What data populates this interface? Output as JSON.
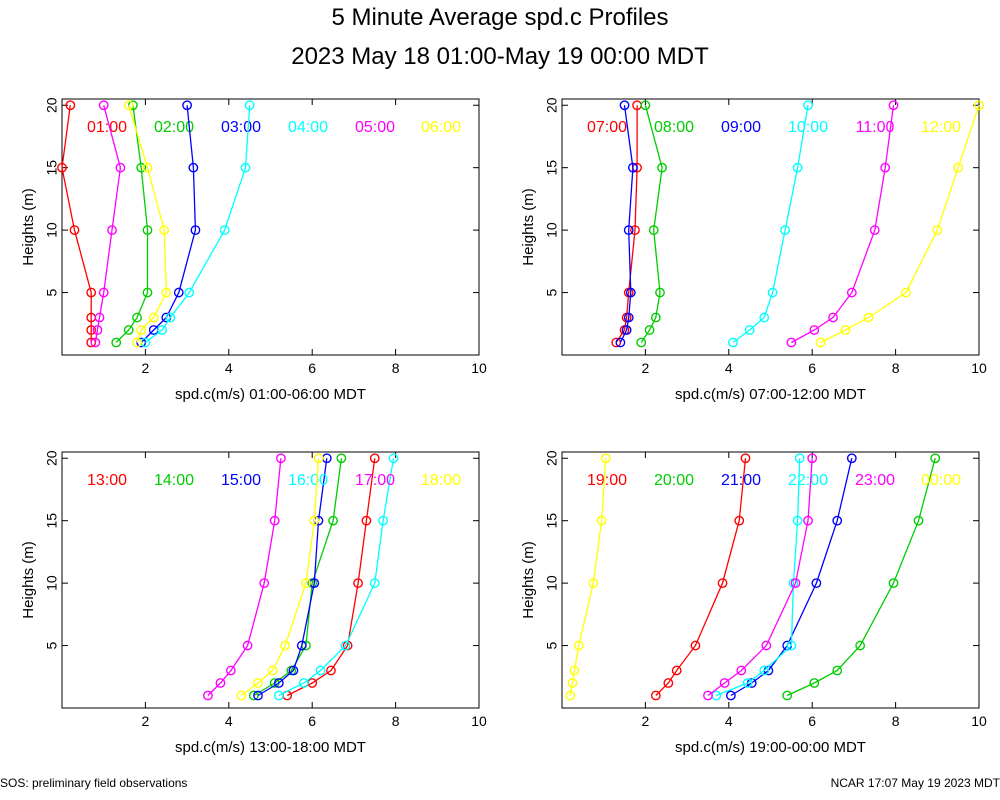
{
  "header": {
    "title": "5 Minute Average spd.c Profiles",
    "subtitle": "2023 May 18 01:00-May 19 00:00 MDT"
  },
  "footer": {
    "left": "SOS: preliminary field observations",
    "right": "NCAR 17:07 May 19 2023 MDT"
  },
  "chart_data": [
    {
      "type": "line",
      "xlabel": "spd.c(m/s) 01:00-06:00 MDT",
      "ylabel": "Heights (m)",
      "xlim": [
        0,
        10
      ],
      "ylim": [
        0,
        20.5
      ],
      "xticks": [
        2,
        4,
        6,
        8,
        10
      ],
      "yticks": [
        5,
        10,
        15,
        20
      ],
      "heights": [
        1,
        2,
        3,
        5,
        10,
        15,
        20
      ],
      "series": [
        {
          "name": "01:00",
          "color": "#ff0000",
          "values": [
            0.7,
            0.7,
            0.7,
            0.7,
            0.3,
            0.0,
            0.2
          ]
        },
        {
          "name": "02:00",
          "color": "#00cc00",
          "values": [
            1.3,
            1.6,
            1.8,
            2.05,
            2.05,
            1.9,
            1.7
          ]
        },
        {
          "name": "03:00",
          "color": "#0000ff",
          "values": [
            1.9,
            2.2,
            2.5,
            2.8,
            3.2,
            3.15,
            3.0
          ]
        },
        {
          "name": "04:00",
          "color": "#00ffff",
          "values": [
            2.0,
            2.4,
            2.6,
            3.05,
            3.9,
            4.4,
            4.5
          ]
        },
        {
          "name": "05:00",
          "color": "#ff00ff",
          "values": [
            0.8,
            0.85,
            0.9,
            1.0,
            1.2,
            1.4,
            1.0
          ]
        },
        {
          "name": "06:00",
          "color": "#ffff00",
          "values": [
            1.8,
            1.9,
            2.2,
            2.5,
            2.45,
            2.05,
            1.6
          ]
        }
      ]
    },
    {
      "type": "line",
      "xlabel": "spd.c(m/s) 07:00-12:00 MDT",
      "ylabel": "Heights (m)",
      "xlim": [
        0,
        10
      ],
      "ylim": [
        0,
        20.5
      ],
      "xticks": [
        2,
        4,
        6,
        8,
        10
      ],
      "yticks": [
        5,
        10,
        15,
        20
      ],
      "heights": [
        1,
        2,
        3,
        5,
        10,
        15,
        20
      ],
      "series": [
        {
          "name": "07:00",
          "color": "#ff0000",
          "values": [
            1.3,
            1.5,
            1.55,
            1.6,
            1.75,
            1.8,
            1.8
          ]
        },
        {
          "name": "08:00",
          "color": "#00cc00",
          "values": [
            1.9,
            2.1,
            2.25,
            2.35,
            2.2,
            2.4,
            2.0
          ]
        },
        {
          "name": "09:00",
          "color": "#0000ff",
          "values": [
            1.4,
            1.55,
            1.6,
            1.65,
            1.6,
            1.7,
            1.5
          ]
        },
        {
          "name": "10:00",
          "color": "#00ffff",
          "values": [
            4.1,
            4.5,
            4.85,
            5.05,
            5.35,
            5.65,
            5.9
          ]
        },
        {
          "name": "11:00",
          "color": "#ff00ff",
          "values": [
            5.5,
            6.05,
            6.5,
            6.95,
            7.5,
            7.75,
            7.95
          ]
        },
        {
          "name": "12:00",
          "color": "#ffff00",
          "values": [
            6.2,
            6.8,
            7.35,
            8.25,
            9.0,
            9.5,
            10.0
          ]
        }
      ]
    },
    {
      "type": "line",
      "xlabel": "spd.c(m/s) 13:00-18:00 MDT",
      "ylabel": "Heights (m)",
      "xlim": [
        0,
        10
      ],
      "ylim": [
        0,
        20.5
      ],
      "xticks": [
        2,
        4,
        6,
        8,
        10
      ],
      "yticks": [
        5,
        10,
        15,
        20
      ],
      "heights": [
        1,
        2,
        3,
        5,
        10,
        15,
        20
      ],
      "series": [
        {
          "name": "13:00",
          "color": "#ff0000",
          "values": [
            5.4,
            6.0,
            6.45,
            6.85,
            7.1,
            7.3,
            7.5
          ]
        },
        {
          "name": "14:00",
          "color": "#00cc00",
          "values": [
            4.6,
            5.1,
            5.5,
            5.85,
            6.0,
            6.5,
            6.7
          ]
        },
        {
          "name": "15:00",
          "color": "#0000ff",
          "values": [
            4.7,
            5.2,
            5.55,
            5.75,
            6.05,
            6.15,
            6.35
          ]
        },
        {
          "name": "16:00",
          "color": "#00ffff",
          "values": [
            5.2,
            5.8,
            6.2,
            6.8,
            7.5,
            7.7,
            7.95
          ]
        },
        {
          "name": "17:00",
          "color": "#ff00ff",
          "values": [
            3.5,
            3.8,
            4.05,
            4.45,
            4.85,
            5.1,
            5.25
          ]
        },
        {
          "name": "18:00",
          "color": "#ffff00",
          "values": [
            4.3,
            4.7,
            5.05,
            5.35,
            5.85,
            6.05,
            6.15
          ]
        }
      ]
    },
    {
      "type": "line",
      "xlabel": "spd.c(m/s) 19:00-00:00 MDT",
      "ylabel": "Heights (m)",
      "xlim": [
        0,
        10
      ],
      "ylim": [
        0,
        20.5
      ],
      "xticks": [
        2,
        4,
        6,
        8,
        10
      ],
      "yticks": [
        5,
        10,
        15,
        20
      ],
      "heights": [
        1,
        2,
        3,
        5,
        10,
        15,
        20
      ],
      "series": [
        {
          "name": "19:00",
          "color": "#ff0000",
          "values": [
            2.25,
            2.55,
            2.75,
            3.2,
            3.85,
            4.25,
            4.4
          ]
        },
        {
          "name": "20:00",
          "color": "#00cc00",
          "values": [
            5.4,
            6.05,
            6.6,
            7.15,
            7.95,
            8.55,
            8.95
          ]
        },
        {
          "name": "21:00",
          "color": "#0000ff",
          "values": [
            4.05,
            4.55,
            4.95,
            5.4,
            6.1,
            6.6,
            6.95
          ]
        },
        {
          "name": "22:00",
          "color": "#00ffff",
          "values": [
            3.7,
            4.45,
            4.85,
            5.5,
            5.55,
            5.65,
            5.7
          ]
        },
        {
          "name": "23:00",
          "color": "#ff00ff",
          "values": [
            3.5,
            3.9,
            4.3,
            4.9,
            5.6,
            5.9,
            6.0
          ]
        },
        {
          "name": "00:00",
          "color": "#ffff00",
          "values": [
            0.2,
            0.25,
            0.3,
            0.4,
            0.75,
            0.95,
            1.05
          ]
        }
      ]
    }
  ]
}
